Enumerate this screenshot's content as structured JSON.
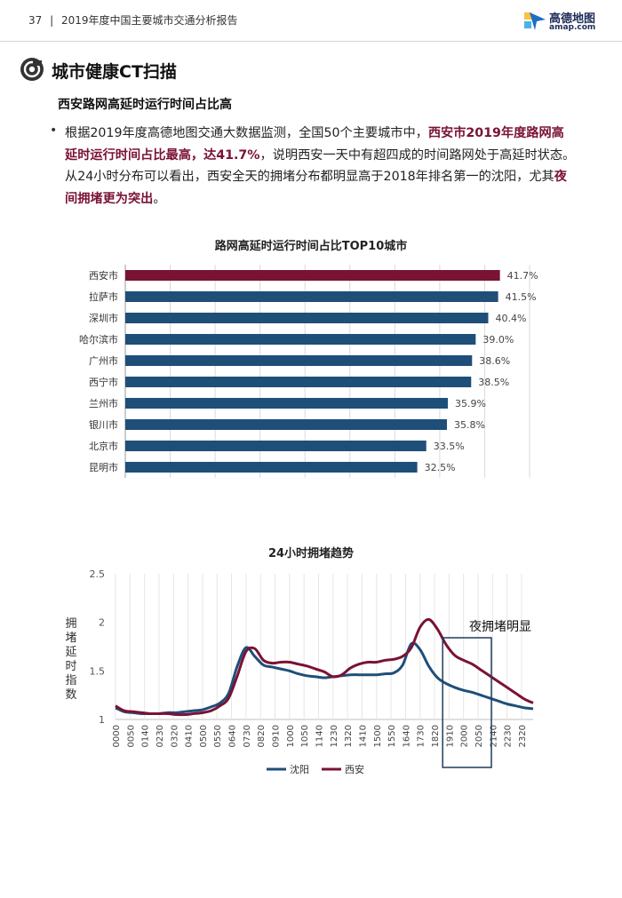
{
  "header": {
    "page_number": "37",
    "separator": "|",
    "report_title": "2019年度中国主要城市交通分析报告",
    "logo_name": "高德地图",
    "logo_sub": "amap.com"
  },
  "section": {
    "title": "城市健康CT扫描",
    "subtitle": "西安路网高延时运行时间占比高"
  },
  "paragraph": {
    "bullet": "•",
    "part1": "根据2019年度高德地图交通大数据监测，全国50个主要城市中，",
    "highlight1": "西安市2019年度路网高延时运行时间占比最高，",
    "part2": "达41.7%",
    "part3": "，说明西安一天中有超四成的时间路网处于高延时状态。从24小时分布可以看出，西安全天的拥堵分布都明显高于2018年排名第一的沈阳，尤其",
    "highlight2": "夜间拥堵更为突出",
    "part4": "。"
  },
  "colors": {
    "xian": "#7a1234",
    "other": "#1f4e79",
    "text": "#222222",
    "grid": "#d9d9d9"
  },
  "chart_data": [
    {
      "type": "bar",
      "orientation": "horizontal",
      "title": "路网高延时运行时间占比TOP10城市",
      "categories": [
        "西安市",
        "拉萨市",
        "深圳市",
        "哈尔滨市",
        "广州市",
        "西宁市",
        "兰州市",
        "银川市",
        "北京市",
        "昆明市"
      ],
      "values": [
        41.7,
        41.5,
        40.4,
        39.0,
        38.6,
        38.5,
        35.9,
        35.8,
        33.5,
        32.5
      ],
      "labels": [
        "41.7%",
        "41.5%",
        "40.4%",
        "39.0%",
        "38.6%",
        "38.5%",
        "35.9%",
        "35.8%",
        "33.5%",
        "32.5%"
      ],
      "highlight": "西安市",
      "xlim": [
        0,
        45
      ],
      "grid": "vertical"
    },
    {
      "type": "line",
      "title": "24小时拥堵趋势",
      "ylabel": "拥堵延时指数",
      "ylim": [
        1,
        2.5
      ],
      "yticks": [
        "1",
        "1.5",
        "2",
        "2.5"
      ],
      "x_tick_labels": [
        "0000",
        "0050",
        "0140",
        "0230",
        "0320",
        "0410",
        "0500",
        "0550",
        "0640",
        "0730",
        "0820",
        "0910",
        "1000",
        "1050",
        "1140",
        "1230",
        "1320",
        "1410",
        "1500",
        "1550",
        "1640",
        "1730",
        "1820",
        "1910",
        "2000",
        "2050",
        "2140",
        "2230",
        "2320"
      ],
      "x_hours": [
        0,
        0.5,
        1,
        1.5,
        2,
        2.5,
        3,
        3.5,
        4,
        4.5,
        5,
        5.5,
        6,
        6.5,
        7,
        7.5,
        8,
        8.5,
        9,
        9.5,
        10,
        10.5,
        11,
        11.5,
        12,
        12.5,
        13,
        13.5,
        14,
        14.5,
        15,
        15.5,
        16,
        16.5,
        17,
        17.5,
        18,
        18.5,
        19,
        19.5,
        20,
        20.5,
        21,
        21.5,
        22,
        22.5,
        23,
        23.5,
        24
      ],
      "series": [
        {
          "name": "沈阳",
          "color": "#1f4e79",
          "values": [
            1.12,
            1.08,
            1.07,
            1.06,
            1.06,
            1.06,
            1.07,
            1.07,
            1.08,
            1.09,
            1.1,
            1.13,
            1.17,
            1.27,
            1.55,
            1.74,
            1.65,
            1.56,
            1.54,
            1.52,
            1.5,
            1.47,
            1.45,
            1.44,
            1.43,
            1.44,
            1.45,
            1.46,
            1.46,
            1.46,
            1.46,
            1.47,
            1.48,
            1.56,
            1.78,
            1.72,
            1.55,
            1.43,
            1.37,
            1.33,
            1.3,
            1.28,
            1.25,
            1.22,
            1.19,
            1.16,
            1.14,
            1.12,
            1.11
          ]
        },
        {
          "name": "西安",
          "color": "#7a1234",
          "values": [
            1.14,
            1.09,
            1.08,
            1.07,
            1.06,
            1.06,
            1.06,
            1.05,
            1.05,
            1.06,
            1.07,
            1.09,
            1.14,
            1.22,
            1.45,
            1.7,
            1.73,
            1.61,
            1.58,
            1.59,
            1.59,
            1.57,
            1.55,
            1.52,
            1.49,
            1.44,
            1.46,
            1.53,
            1.57,
            1.59,
            1.59,
            1.61,
            1.62,
            1.65,
            1.74,
            1.95,
            2.03,
            1.93,
            1.77,
            1.66,
            1.61,
            1.57,
            1.51,
            1.45,
            1.39,
            1.33,
            1.27,
            1.21,
            1.17
          ]
        }
      ],
      "annotation": "夜拥堵明显",
      "annotation_box_hours": [
        18.8,
        21.6
      ],
      "legend": "bottom"
    }
  ]
}
